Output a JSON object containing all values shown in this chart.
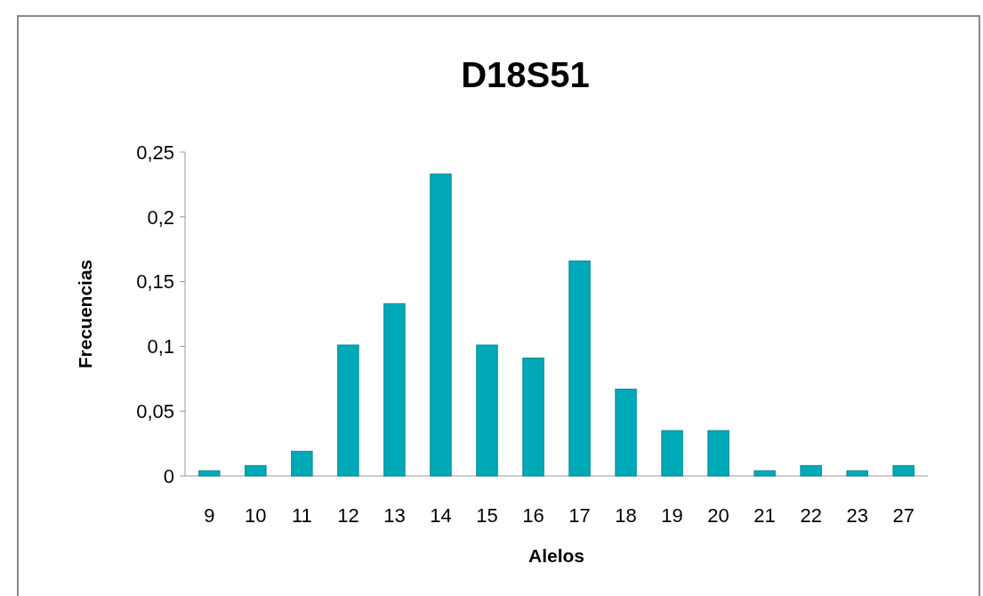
{
  "chart_data": {
    "type": "bar",
    "title": "D18S51",
    "xlabel": "Alelos",
    "ylabel": "Frecuencias",
    "categories": [
      "9",
      "10",
      "11",
      "12",
      "13",
      "14",
      "15",
      "16",
      "17",
      "18",
      "19",
      "20",
      "21",
      "22",
      "23",
      "27"
    ],
    "values": [
      0.004,
      0.008,
      0.019,
      0.101,
      0.133,
      0.233,
      0.101,
      0.091,
      0.166,
      0.067,
      0.035,
      0.035,
      0.004,
      0.008,
      0.004,
      0.008
    ],
    "color": "#00a9b7",
    "ylim": [
      0,
      0.25
    ],
    "yticks": [
      {
        "value": 0,
        "label": "0"
      },
      {
        "value": 0.05,
        "label": "0,05"
      },
      {
        "value": 0.1,
        "label": "0,1"
      },
      {
        "value": 0.15,
        "label": "0,15"
      },
      {
        "value": 0.2,
        "label": "0,2"
      },
      {
        "value": 0.25,
        "label": "0,25"
      }
    ],
    "grid": false,
    "legend": false
  }
}
